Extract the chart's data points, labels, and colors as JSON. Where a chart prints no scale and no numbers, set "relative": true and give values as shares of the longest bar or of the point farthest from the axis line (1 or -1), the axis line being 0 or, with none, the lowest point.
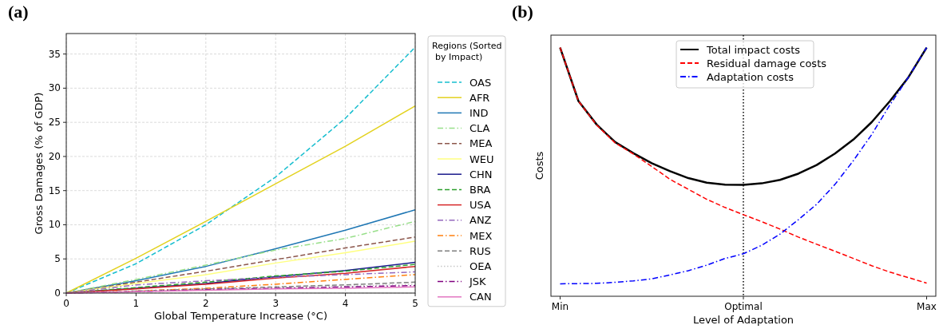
{
  "chart_data": [
    {
      "type": "line",
      "title": "(a)",
      "xlabel": "Global Temperature Increase (°C)",
      "ylabel": "Gross Damages (% of GDP)",
      "legend_title": "Regions (Sorted by Impact)",
      "legend": "right",
      "grid": true,
      "x": [
        0,
        1,
        2,
        3,
        4,
        5
      ],
      "xlim": [
        0,
        5
      ],
      "ylim": [
        0,
        38
      ],
      "xticks": [
        0,
        1,
        2,
        3,
        4,
        5
      ],
      "yticks": [
        0,
        5,
        10,
        15,
        20,
        25,
        30,
        35
      ],
      "series": [
        {
          "name": "OAS",
          "color": "#17becf",
          "line_style": "dashed",
          "values": [
            0,
            4.3,
            10,
            17,
            25.6,
            36
          ]
        },
        {
          "name": "AFR",
          "color": "#e3d21f",
          "line_style": "solid",
          "values": [
            0,
            5.1,
            10.5,
            16,
            21.5,
            27.4
          ]
        },
        {
          "name": "IND",
          "color": "#1f77b4",
          "line_style": "solid",
          "values": [
            0,
            1.8,
            3.9,
            6.5,
            9.2,
            12.2
          ]
        },
        {
          "name": "CLA",
          "color": "#98df8a",
          "line_style": "dashdot",
          "values": [
            0,
            2,
            4.1,
            6.3,
            8,
            10.5
          ]
        },
        {
          "name": "MEA",
          "color": "#8c564b",
          "line_style": "dashed",
          "values": [
            0,
            1.6,
            3.2,
            4.9,
            6.6,
            8.2
          ]
        },
        {
          "name": "WEU",
          "color": "#ffff80",
          "line_style": "solid",
          "values": [
            0,
            1.4,
            2.7,
            4.4,
            5.9,
            7.6
          ]
        },
        {
          "name": "CHN",
          "color": "#1a1a8c",
          "line_style": "solid",
          "values": [
            0,
            0.7,
            1.4,
            2.4,
            3.3,
            4.5
          ]
        },
        {
          "name": "BRA",
          "color": "#2ca02c",
          "line_style": "dashed",
          "values": [
            0,
            0.8,
            1.6,
            2.5,
            3.2,
            4.2
          ]
        },
        {
          "name": "USA",
          "color": "#d62728",
          "line_style": "solid",
          "values": [
            0,
            0.6,
            1.3,
            2.2,
            2.9,
            3.9
          ]
        },
        {
          "name": "ANZ",
          "color": "#9467bd",
          "line_style": "dashdot",
          "values": [
            0,
            1.2,
            1.8,
            2.3,
            2.7,
            3.1
          ]
        },
        {
          "name": "MEX",
          "color": "#ff7f0e",
          "line_style": "dashdot",
          "values": [
            0,
            0.3,
            0.7,
            1.3,
            2,
            2.7
          ]
        },
        {
          "name": "RUS",
          "color": "#7f7f7f",
          "line_style": "dashed",
          "values": [
            0,
            0.3,
            0.6,
            0.9,
            1.2,
            1.6
          ]
        },
        {
          "name": "OEA",
          "color": "#c7c7c7",
          "line_style": "dotted",
          "values": [
            0,
            0.3,
            0.5,
            0.8,
            1,
            1.3
          ]
        },
        {
          "name": "JSK",
          "color": "#800080",
          "line_style": "dashdot",
          "values": [
            0,
            0.2,
            0.5,
            0.7,
            0.9,
            1.1
          ]
        },
        {
          "name": "CAN",
          "color": "#e377c2",
          "line_style": "solid",
          "values": [
            0,
            0.2,
            0.4,
            0.6,
            0.7,
            0.9
          ]
        }
      ]
    },
    {
      "type": "line",
      "title": "(b)",
      "xlabel": "Level of Adaptation",
      "ylabel": "Costs",
      "relative": true,
      "legend": "top",
      "categories": [
        "Min",
        null,
        null,
        null,
        null,
        null,
        null,
        null,
        null,
        null,
        "Optimal",
        null,
        null,
        null,
        null,
        null,
        null,
        null,
        null,
        null,
        "Max"
      ],
      "ref_lines": [
        {
          "axis": "x",
          "value": "Optimal",
          "color": "#000000",
          "line_style": "dotted"
        }
      ],
      "series": [
        {
          "name": "Total impact costs",
          "color": "#000000",
          "line_style": "solid",
          "values": [
            1,
            0.785,
            0.69,
            0.62,
            0.575,
            0.535,
            0.503,
            0.475,
            0.457,
            0.449,
            0.448,
            0.454,
            0.468,
            0.493,
            0.528,
            0.574,
            0.63,
            0.7,
            0.785,
            0.88,
            1
          ]
        },
        {
          "name": "Residual damage costs",
          "color": "#ff0000",
          "line_style": "dashed",
          "values": [
            1,
            0.785,
            0.688,
            0.617,
            0.572,
            0.522,
            0.47,
            0.43,
            0.39,
            0.357,
            0.328,
            0.3,
            0.27,
            0.238,
            0.209,
            0.181,
            0.152,
            0.123,
            0.097,
            0.075,
            0.053
          ]
        },
        {
          "name": "Adaptation costs",
          "color": "#0000ff",
          "line_style": "dashdot",
          "values": [
            0.05,
            0.051,
            0.052,
            0.056,
            0.062,
            0.07,
            0.086,
            0.103,
            0.125,
            0.152,
            0.171,
            0.205,
            0.25,
            0.308,
            0.37,
            0.45,
            0.545,
            0.65,
            0.77,
            0.88,
            1
          ]
        }
      ]
    }
  ]
}
